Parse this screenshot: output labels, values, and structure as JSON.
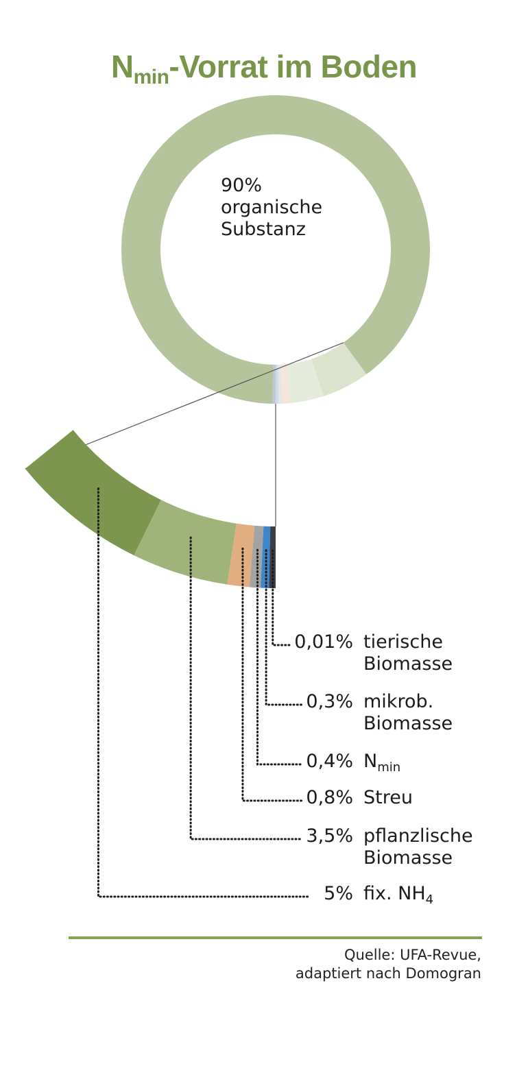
{
  "title": {
    "main": "N",
    "sub": "min",
    "rest": "-Vorrat im Boden"
  },
  "chart_data": {
    "type": "pie",
    "title": "Nmin-Vorrat im Boden",
    "main_slice": {
      "label": "organische Substanz",
      "pct_text": "90%",
      "value": 90,
      "color": "#b6c49b"
    },
    "detail_slices": [
      {
        "pct_text": "5%",
        "value": 5,
        "label": "fix. NH",
        "sub": "4",
        "label2": "",
        "color": "#7c9650",
        "ring_color": "#dbe3cd"
      },
      {
        "pct_text": "3,5%",
        "value": 3.5,
        "label": "pflanzlische",
        "sub": "",
        "label2": "Biomasse",
        "color": "#a0b37a",
        "ring_color": "#e6ecdb"
      },
      {
        "pct_text": "0,8%",
        "value": 0.8,
        "label": "Streu",
        "sub": "",
        "label2": "",
        "color": "#e0ae80",
        "ring_color": "#f6e5d8"
      },
      {
        "pct_text": "0,4%",
        "value": 0.4,
        "label": "N",
        "sub": "min",
        "label2": "",
        "color": "#a3a3a3",
        "ring_color": "#e6e6e6"
      },
      {
        "pct_text": "0,3%",
        "value": 0.3,
        "label": "mikrob.",
        "sub": "",
        "label2": "Biomasse",
        "color": "#3e86c8",
        "ring_color": "#ccdcee"
      },
      {
        "pct_text": "0,01%",
        "value": 0.01,
        "label": "tierische",
        "sub": "",
        "label2": "Biomasse",
        "color": "#3a3f4a",
        "ring_color": "#c3c7d0"
      }
    ]
  },
  "source": {
    "line1": "Quelle: UFA-Revue,",
    "line2": "adaptiert nach Domogran"
  }
}
